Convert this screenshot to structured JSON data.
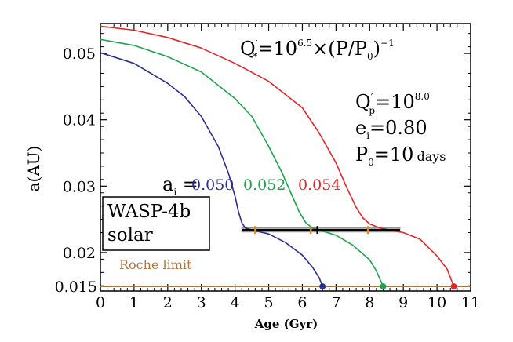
{
  "chart_data": {
    "type": "line",
    "xlabel": "Age (Gyr)",
    "ylabel": "a(AU)",
    "xlim": [
      0,
      11
    ],
    "ylim": [
      0.0142,
      0.0545
    ],
    "x_ticks": [
      "0",
      "1",
      "2",
      "3",
      "4",
      "5",
      "6",
      "7",
      "8",
      "9",
      "10",
      "11"
    ],
    "y_ticks": [
      {
        "value": 0.02,
        "label": "0.02"
      },
      {
        "value": 0.03,
        "label": "0.03"
      },
      {
        "value": 0.04,
        "label": "0.04"
      },
      {
        "value": 0.05,
        "label": "0.05"
      }
    ],
    "grid": false,
    "series": [
      {
        "name": "0.050",
        "color": "#2b2f8f",
        "x": [
          0,
          1.0,
          2.0,
          2.5,
          3.0,
          3.5,
          3.8,
          4.0,
          4.1,
          4.2,
          4.3,
          4.5,
          5.0,
          5.5,
          6.0,
          6.3,
          6.5,
          6.6
        ],
        "y": [
          0.0501,
          0.0485,
          0.0455,
          0.0435,
          0.0405,
          0.036,
          0.032,
          0.0285,
          0.0262,
          0.0245,
          0.0237,
          0.0234,
          0.0228,
          0.0215,
          0.0196,
          0.0178,
          0.0162,
          0.0149
        ]
      },
      {
        "name": "0.052",
        "color": "#1aa64b",
        "x": [
          0,
          1.0,
          2.0,
          3.0,
          4.0,
          4.5,
          5.0,
          5.4,
          5.7,
          5.9,
          6.1,
          6.3,
          6.5,
          7.0,
          7.5,
          8.0,
          8.2,
          8.4
        ],
        "y": [
          0.0521,
          0.0512,
          0.0495,
          0.0472,
          0.0432,
          0.0405,
          0.036,
          0.032,
          0.0285,
          0.0262,
          0.0245,
          0.0237,
          0.0234,
          0.0226,
          0.0211,
          0.0189,
          0.0172,
          0.0149
        ]
      },
      {
        "name": "0.054",
        "color": "#e3262a",
        "x": [
          0,
          1.0,
          2.0,
          3.0,
          4.0,
          5.0,
          6.0,
          6.5,
          7.0,
          7.3,
          7.6,
          7.8,
          8.0,
          8.3,
          8.6,
          9.0,
          9.5,
          10.0,
          10.3,
          10.5
        ],
        "y": [
          0.0541,
          0.0535,
          0.0524,
          0.0508,
          0.0485,
          0.0458,
          0.0418,
          0.038,
          0.0335,
          0.03,
          0.0268,
          0.0252,
          0.0243,
          0.0237,
          0.0234,
          0.023,
          0.022,
          0.0195,
          0.0175,
          0.0149
        ]
      }
    ],
    "roche_limit": {
      "y": 0.0149,
      "label": "Roche limit",
      "color": "#b5733c",
      "y_label": "0.015"
    },
    "observed_band": {
      "x": [
        4.2,
        8.9
      ],
      "y": 0.0234,
      "y_err": 0.0003
    },
    "markers": [
      {
        "x": 4.6,
        "y": 0.0234,
        "color": "#e08a1c"
      },
      {
        "x": 6.25,
        "y": 0.0234,
        "color": "#e08a1c"
      },
      {
        "x": 7.95,
        "y": 0.0234,
        "color": "#e08a1c"
      },
      {
        "x": 6.45,
        "y": 0.0234,
        "color": "#000000"
      }
    ],
    "annotations": {
      "q_star": {
        "main": "Q",
        "sup1": "′",
        "sub": "*",
        "mid": "=10",
        "sup2": "6.5",
        "tail": "×(P/P",
        "sub2": "0",
        "end": ")",
        "sup3": "−1"
      },
      "q_p": {
        "main": "Q",
        "sup1": "′",
        "sub": "p",
        "mid": "=10",
        "sup2": "8.0"
      },
      "e_i": {
        "main": "e",
        "sub": "i",
        "tail": "=0.80"
      },
      "p_0": {
        "main": "P",
        "sub": "0",
        "tail": "=10",
        "small": "days"
      },
      "a_i": {
        "main": "a",
        "sub": "i",
        "tail": " ="
      },
      "legend_box": {
        "line1": "WASP-4b",
        "line2": "solar"
      }
    }
  }
}
